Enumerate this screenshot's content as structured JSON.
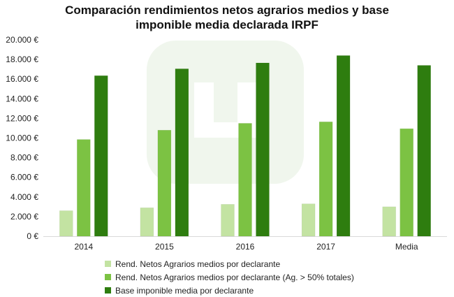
{
  "title_lines": [
    "Comparación rendimientos netos agrarios medios y base",
    "imponible media declarada IRPF"
  ],
  "chart_data": {
    "type": "bar",
    "title": "Comparación rendimientos netos agrarios medios y base imponible media declarada IRPF",
    "categories": [
      "2014",
      "2015",
      "2016",
      "2017",
      "Media"
    ],
    "series": [
      {
        "name": "Rend. Netos Agrarios medios por declarante",
        "values": [
          2600,
          2900,
          3250,
          3300,
          3000
        ],
        "color": "#c3e3a2"
      },
      {
        "name": "Rend. Netos Agrarios medios por declarante (Ag. > 50% totales)",
        "values": [
          9850,
          10800,
          11500,
          11650,
          10950
        ],
        "color": "#7cc243"
      },
      {
        "name": "Base imponible media por declarante",
        "values": [
          16350,
          17050,
          17650,
          18400,
          17400
        ],
        "color": "#2e7d0f"
      }
    ],
    "y_ticks": [
      "0 €",
      "2.000 €",
      "4.000 €",
      "6.000 €",
      "8.000 €",
      "10.000 €",
      "12.000 €",
      "14.000 €",
      "16.000 €",
      "18.000 €",
      "20.000 €"
    ],
    "ylim": [
      0,
      20000
    ],
    "grid": false,
    "legend_position": "bottom",
    "watermark": "logo"
  }
}
